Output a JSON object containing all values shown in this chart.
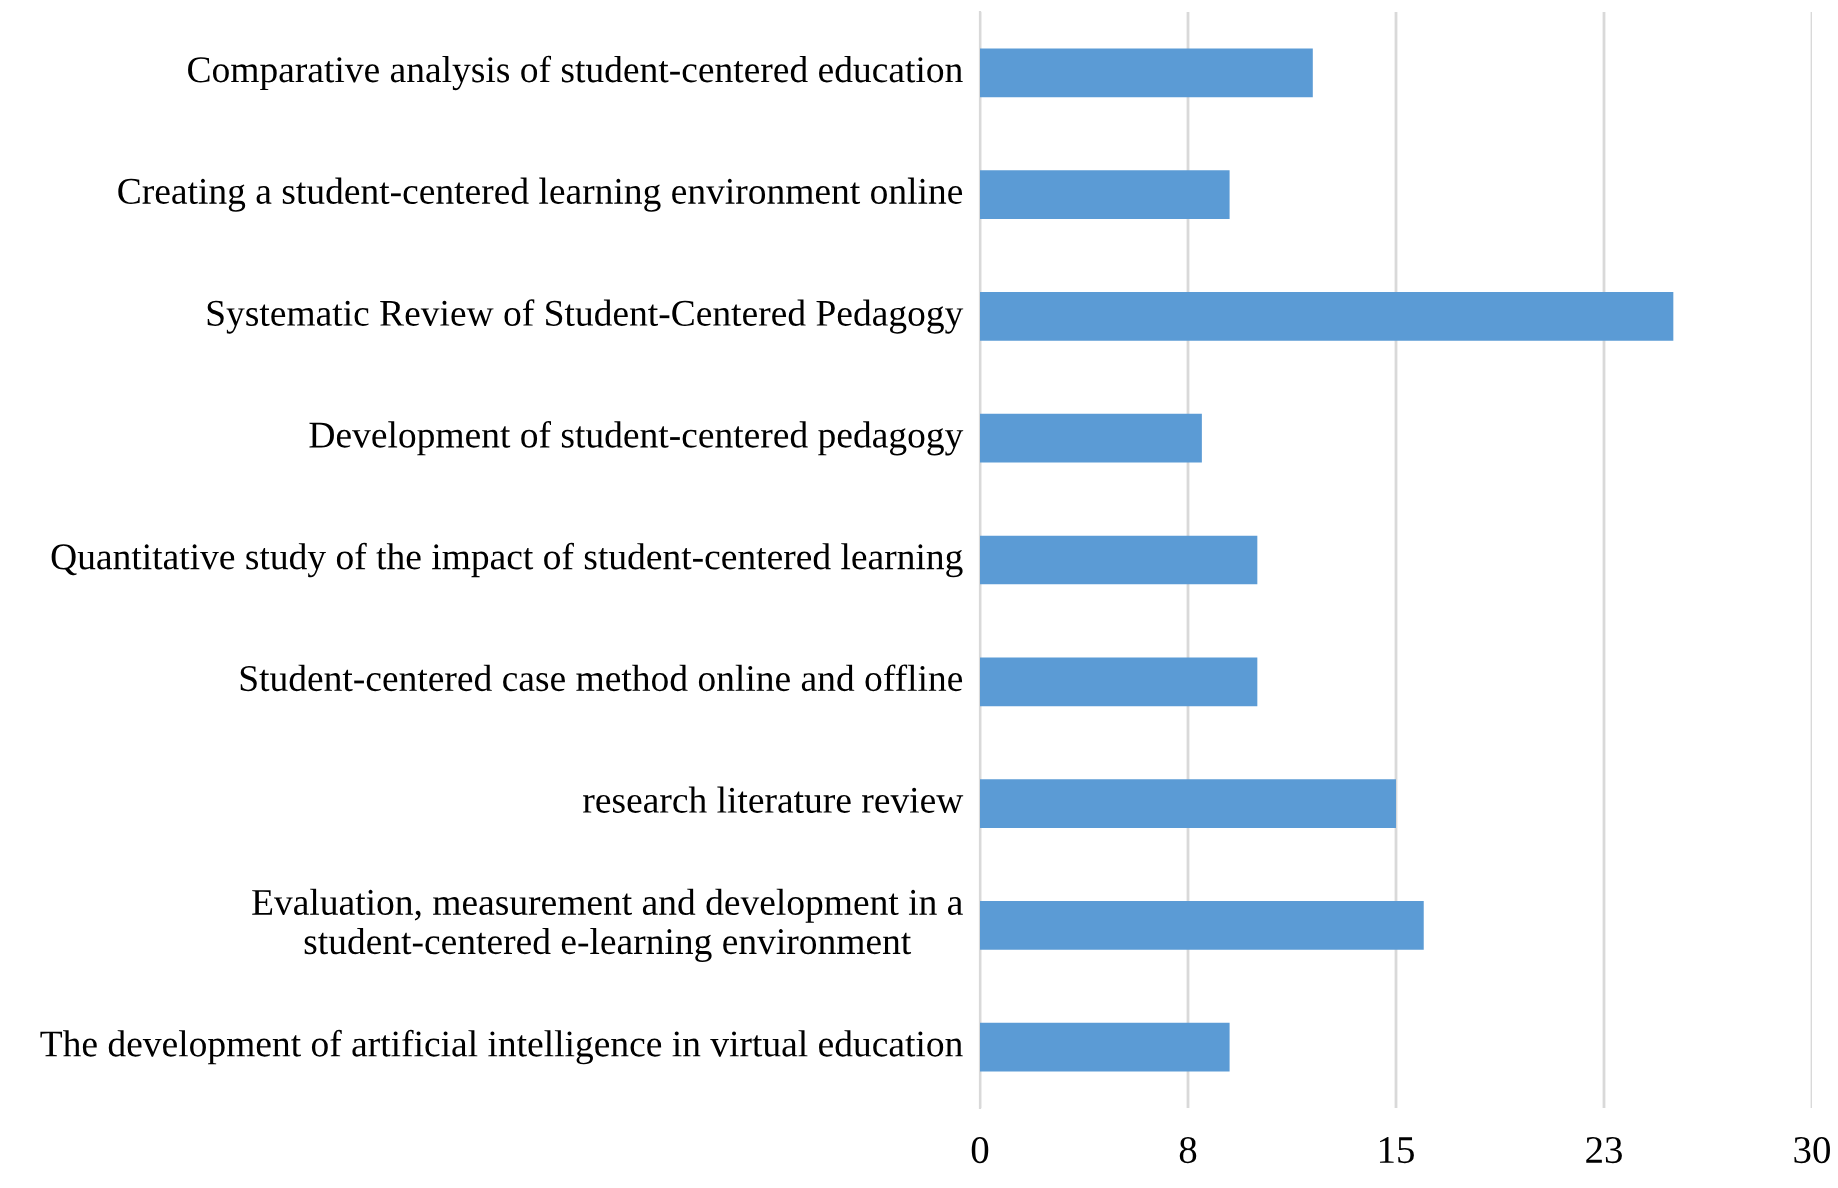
{
  "chart_data": {
    "type": "bar",
    "orientation": "horizontal",
    "categories": [
      "Comparative analysis of student-centered education",
      "Creating a student-centered learning environment online",
      "Systematic Review of Student-Centered Pedagogy",
      "Development of student-centered pedagogy",
      "Quantitative study of the impact of student-centered learning",
      "Student-centered case method online and offline",
      "research literature review",
      "Evaluation, measurement and development in a student-centered e-learning environment",
      "The development of artificial intelligence in virtual education"
    ],
    "values": [
      12,
      9,
      25,
      8,
      10,
      10,
      15,
      16,
      9
    ],
    "color": "#5b9bd5",
    "xlim": [
      0,
      30
    ],
    "xticks": [
      0,
      {
        "value": 7.5,
        "label": "8"
      },
      15,
      {
        "value": 22.5,
        "label": "23"
      },
      30
    ],
    "grid": "x"
  }
}
